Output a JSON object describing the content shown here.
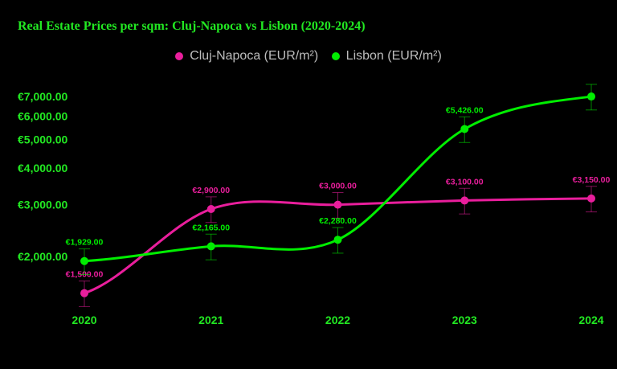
{
  "chart_data": {
    "type": "line",
    "title": "Real Estate Prices per sqm: Cluj-Napoca vs Lisbon (2020-2024)",
    "categories": [
      "2020",
      "2021",
      "2022",
      "2023",
      "2024"
    ],
    "y_scale": "log",
    "ylim": [
      1300,
      7600
    ],
    "y_ticks": [
      2000,
      3000,
      4000,
      5000,
      6000,
      7000
    ],
    "y_tick_labels": [
      "€2,000.00",
      "€3,000.00",
      "€4,000.00",
      "€5,000.00",
      "€6,000.00",
      "€7,000.00"
    ],
    "grid": false,
    "legend": "top",
    "series": [
      {
        "name": "Cluj-Napoca (EUR/m²)",
        "color": "#e91e9c",
        "values": [
          1500,
          2900,
          3000,
          3100,
          3150
        ],
        "errors": [
          150,
          290,
          300,
          310,
          315
        ],
        "labels": [
          "€1,500.00",
          "€2,900.00",
          "€3,000.00",
          "€3,100.00",
          "€3,150.00"
        ]
      },
      {
        "name": "Lisbon (EUR/m²)",
        "color": "#00ee00",
        "values": [
          1929,
          2165,
          2280,
          5426,
          7000
        ],
        "errors": [
          193,
          217,
          228,
          543,
          700
        ],
        "labels": [
          "€1,929.00",
          "€2,165.00",
          "€2,280.00",
          "€5,426.00",
          ""
        ]
      }
    ],
    "colors": {
      "title": "#22e822",
      "axis_text": "#22e822",
      "legend_text": "#bdbdbd",
      "background": "#000000"
    }
  }
}
